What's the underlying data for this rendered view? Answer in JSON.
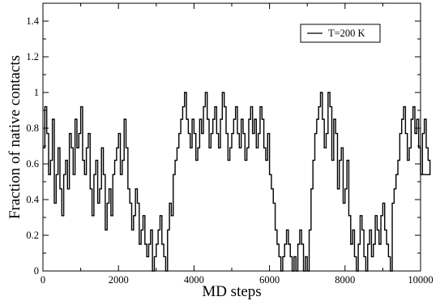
{
  "chart_data": {
    "type": "line",
    "title": "",
    "xlabel": "MD steps",
    "ylabel": "Fraction of native contacts",
    "xlim": [
      0,
      10000
    ],
    "ylim": [
      0,
      1.5
    ],
    "x_ticks": [
      0,
      2000,
      4000,
      6000,
      8000,
      10000
    ],
    "y_ticks": [
      0,
      0.2,
      0.4,
      0.6,
      0.8,
      1,
      1.2,
      1.4
    ],
    "y_tick_labels": [
      "0",
      "0.2",
      "0.4",
      "0.6",
      "0.8",
      "1",
      "1.2",
      "1.4"
    ],
    "grid": false,
    "legend_position": "top-right",
    "series_color": "#000000",
    "series": [
      {
        "name": "T=200 K",
        "sample_step": 50,
        "x_start": 0,
        "values": [
          0.69,
          0.92,
          0.77,
          0.54,
          0.62,
          0.85,
          0.38,
          0.54,
          0.69,
          0.46,
          0.31,
          0.54,
          0.62,
          0.46,
          0.77,
          0.69,
          0.54,
          0.85,
          0.69,
          0.77,
          0.92,
          0.62,
          0.54,
          0.69,
          0.77,
          0.46,
          0.31,
          0.54,
          0.62,
          0.38,
          0.46,
          0.69,
          0.54,
          0.23,
          0.38,
          0.46,
          0.31,
          0.54,
          0.62,
          0.69,
          0.77,
          0.54,
          0.62,
          0.85,
          0.69,
          0.46,
          0.38,
          0.23,
          0.31,
          0.46,
          0.38,
          0.15,
          0.23,
          0.31,
          0.15,
          0.08,
          0.15,
          0.23,
          0.0,
          0.08,
          0.15,
          0.23,
          0.31,
          0.15,
          0.08,
          0.0,
          0.23,
          0.38,
          0.31,
          0.54,
          0.62,
          0.69,
          0.77,
          0.85,
          0.92,
          1.0,
          0.85,
          0.77,
          0.69,
          0.85,
          0.77,
          0.62,
          0.69,
          0.85,
          0.77,
          0.92,
          1.0,
          0.85,
          0.69,
          0.77,
          0.85,
          0.92,
          0.77,
          0.69,
          0.85,
          1.0,
          0.92,
          0.77,
          0.62,
          0.69,
          0.77,
          0.85,
          0.92,
          0.77,
          0.69,
          0.85,
          0.77,
          0.62,
          0.69,
          0.85,
          0.92,
          0.77,
          0.85,
          0.69,
          0.77,
          0.92,
          0.85,
          0.69,
          0.62,
          0.77,
          0.54,
          0.46,
          0.38,
          0.23,
          0.15,
          0.08,
          0.0,
          0.08,
          0.15,
          0.23,
          0.15,
          0.08,
          0.0,
          0.08,
          0.0,
          0.15,
          0.23,
          0.15,
          0.0,
          0.08,
          0.0,
          0.23,
          0.46,
          0.62,
          0.77,
          0.85,
          0.92,
          1.0,
          0.85,
          0.69,
          0.77,
          1.0,
          0.92,
          0.62,
          0.85,
          0.77,
          0.46,
          0.62,
          0.69,
          0.38,
          0.46,
          0.62,
          0.31,
          0.15,
          0.23,
          0.08,
          0.0,
          0.15,
          0.31,
          0.23,
          0.08,
          0.0,
          0.15,
          0.23,
          0.08,
          0.15,
          0.31,
          0.23,
          0.15,
          0.31,
          0.38,
          0.23,
          0.15,
          0.08,
          0.0,
          0.38,
          0.46,
          0.54,
          0.62,
          0.77,
          0.85,
          0.92,
          0.77,
          0.62,
          0.69,
          0.85,
          0.92,
          0.77,
          0.85,
          0.69,
          0.54,
          0.77,
          0.85,
          0.69,
          0.62,
          0.54
        ]
      }
    ]
  }
}
